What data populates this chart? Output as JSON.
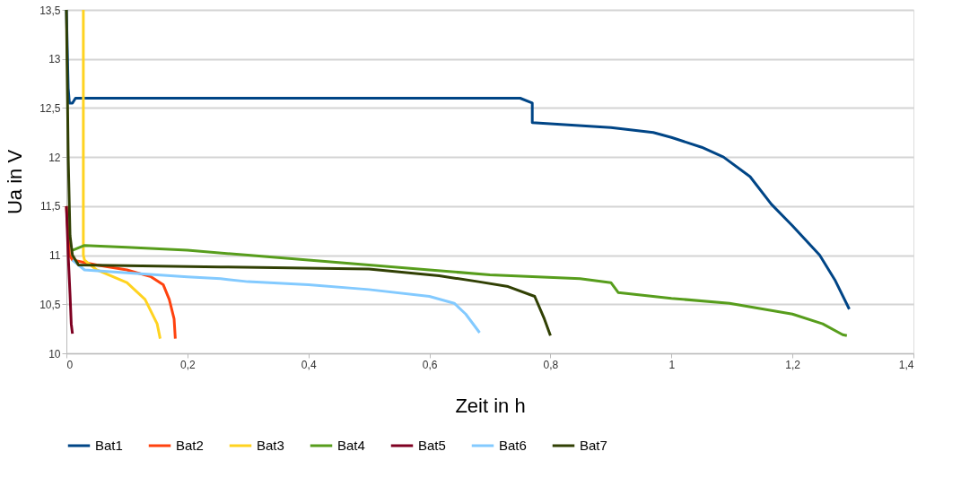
{
  "chart_data": {
    "type": "line",
    "xlabel": "Zeit in h",
    "ylabel": "Ua in V",
    "grid": "y",
    "legend": "bottom",
    "marker": "none",
    "line_style": "solid",
    "xlim": [
      0,
      1.4
    ],
    "ylim": [
      10,
      13.5
    ],
    "xticks": [
      0,
      {
        "value": 0.2,
        "label": "0,2"
      },
      {
        "value": 0.4,
        "label": "0,4"
      },
      {
        "value": 0.6,
        "label": "0,6"
      },
      {
        "value": 0.8,
        "label": "0,8"
      },
      1,
      {
        "value": 1.2,
        "label": "1,2"
      },
      {
        "value": 1.4,
        "label": "1,4"
      }
    ],
    "yticks": [
      10,
      {
        "value": 10.5,
        "label": "10,5"
      },
      11,
      {
        "value": 11.5,
        "label": "11,5"
      },
      12,
      {
        "value": 12.5,
        "label": "12,5"
      },
      13,
      {
        "value": 13.5,
        "label": "13,5"
      }
    ],
    "series": [
      {
        "name": "Bat1",
        "color": "#004586",
        "x": [
          0,
          0.003,
          0.005,
          0.01,
          0.015,
          0.3,
          0.6,
          0.75,
          0.77,
          0.77,
          0.9,
          0.97,
          1.0,
          1.05,
          1.086,
          1.13,
          1.165,
          1.2,
          1.245,
          1.27,
          1.294
        ],
        "values": [
          13.5,
          12.7,
          12.55,
          12.55,
          12.6,
          12.6,
          12.6,
          12.6,
          12.55,
          12.35,
          12.3,
          12.25,
          12.2,
          12.1,
          12.0,
          11.8,
          11.52,
          11.3,
          11.0,
          10.75,
          10.45
        ]
      },
      {
        "name": "Bat2",
        "color": "#ff420e",
        "x": [
          0,
          0.005,
          0.01,
          0.05,
          0.1,
          0.14,
          0.16,
          0.17,
          0.178,
          0.18
        ],
        "values": [
          11.5,
          11.0,
          10.95,
          10.9,
          10.85,
          10.78,
          10.7,
          10.55,
          10.35,
          10.15
        ]
      },
      {
        "name": "Bat3",
        "color": "#ffd320",
        "x": [
          0.028,
          0.028,
          0.03,
          0.05,
          0.1,
          0.13,
          0.15,
          0.155
        ],
        "values": [
          13.5,
          11.0,
          10.95,
          10.85,
          10.72,
          10.55,
          10.3,
          10.15
        ]
      },
      {
        "name": "Bat4",
        "color": "#579d1c",
        "x": [
          0.01,
          0.03,
          0.1,
          0.2,
          0.3,
          0.4,
          0.5,
          0.6,
          0.7,
          0.849,
          0.9,
          0.912,
          1.0,
          1.096,
          1.2,
          1.25,
          1.283,
          1.29
        ],
        "values": [
          11.05,
          11.1,
          11.08,
          11.05,
          11.0,
          10.95,
          10.9,
          10.85,
          10.8,
          10.76,
          10.72,
          10.62,
          10.56,
          10.51,
          10.4,
          10.3,
          10.19,
          10.18
        ]
      },
      {
        "name": "Bat5",
        "color": "#7e0021",
        "x": [
          0,
          0.003,
          0.006,
          0.008,
          0.01
        ],
        "values": [
          11.5,
          11.0,
          10.6,
          10.3,
          10.2
        ]
      },
      {
        "name": "Bat6",
        "color": "#83caff",
        "x": [
          0.01,
          0.03,
          0.1,
          0.2,
          0.255,
          0.3,
          0.4,
          0.5,
          0.6,
          0.641,
          0.66,
          0.683
        ],
        "values": [
          10.95,
          10.85,
          10.82,
          10.78,
          10.76,
          10.73,
          10.7,
          10.65,
          10.58,
          10.51,
          10.4,
          10.21
        ]
      },
      {
        "name": "Bat7",
        "color": "#314004",
        "x": [
          0,
          0.003,
          0.006,
          0.01,
          0.02,
          0.255,
          0.5,
          0.616,
          0.681,
          0.73,
          0.774,
          0.79,
          0.8
        ],
        "values": [
          13.5,
          12.0,
          11.2,
          11.0,
          10.9,
          10.88,
          10.86,
          10.79,
          10.73,
          10.68,
          10.58,
          10.35,
          10.18
        ]
      }
    ]
  }
}
